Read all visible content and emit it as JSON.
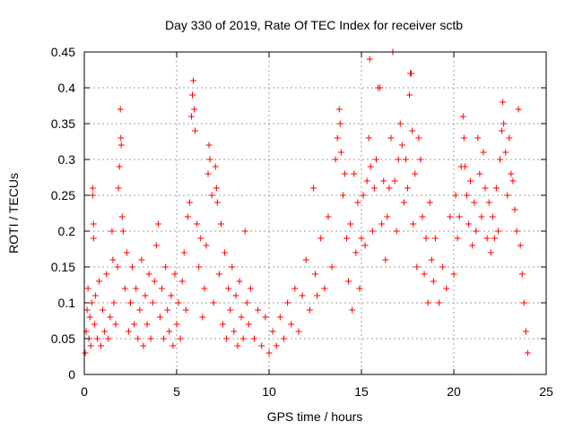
{
  "chart_data": {
    "type": "scatter",
    "title": "Day 330 of 2019, Rate Of TEC Index for receiver sctb",
    "xlabel": "GPS time / hours",
    "ylabel": "ROTI / TECUs",
    "xlim": [
      0,
      25
    ],
    "ylim": [
      0,
      0.45
    ],
    "xticks": [
      0,
      5,
      10,
      15,
      20,
      25
    ],
    "yticks": [
      0,
      0.05,
      0.1,
      0.15,
      0.2,
      0.25,
      0.3,
      0.35,
      0.4,
      0.45
    ],
    "xtick_labels": [
      "0",
      "5",
      "10",
      "15",
      "20",
      "25"
    ],
    "ytick_labels": [
      "0",
      "0.05",
      "0.1",
      "0.15",
      "0.2",
      "0.25",
      "0.3",
      "0.35",
      "0.4",
      "0.45"
    ],
    "grid": true,
    "marker": "plus",
    "color": "#ff0000",
    "series": [
      {
        "points": [
          [
            0.05,
            0.03
          ],
          [
            0.1,
            0.06
          ],
          [
            0.15,
            0.09
          ],
          [
            0.2,
            0.12
          ],
          [
            0.25,
            0.05
          ],
          [
            0.3,
            0.08
          ],
          [
            0.35,
            0.04
          ],
          [
            0.4,
            0.1
          ],
          [
            0.45,
            0.25
          ],
          [
            0.45,
            0.26
          ],
          [
            0.5,
            0.21
          ],
          [
            0.5,
            0.19
          ],
          [
            0.55,
            0.07
          ],
          [
            0.6,
            0.11
          ],
          [
            0.7,
            0.05
          ],
          [
            0.8,
            0.13
          ],
          [
            0.9,
            0.04
          ],
          [
            1.0,
            0.09
          ],
          [
            1.1,
            0.06
          ],
          [
            1.2,
            0.14
          ],
          [
            1.3,
            0.05
          ],
          [
            1.4,
            0.08
          ],
          [
            1.5,
            0.2
          ],
          [
            1.55,
            0.16
          ],
          [
            1.6,
            0.1
          ],
          [
            1.7,
            0.07
          ],
          [
            1.8,
            0.15
          ],
          [
            1.85,
            0.26
          ],
          [
            1.9,
            0.29
          ],
          [
            1.95,
            0.37
          ],
          [
            1.98,
            0.33
          ],
          [
            2.0,
            0.32
          ],
          [
            2.05,
            0.22
          ],
          [
            2.1,
            0.2
          ],
          [
            2.2,
            0.12
          ],
          [
            2.3,
            0.17
          ],
          [
            2.4,
            0.06
          ],
          [
            2.5,
            0.1
          ],
          [
            2.6,
            0.15
          ],
          [
            2.7,
            0.07
          ],
          [
            2.8,
            0.12
          ],
          [
            2.9,
            0.05
          ],
          [
            3.0,
            0.09
          ],
          [
            3.1,
            0.16
          ],
          [
            3.2,
            0.04
          ],
          [
            3.3,
            0.11
          ],
          [
            3.4,
            0.07
          ],
          [
            3.5,
            0.14
          ],
          [
            3.6,
            0.05
          ],
          [
            3.7,
            0.1
          ],
          [
            3.8,
            0.13
          ],
          [
            3.9,
            0.18
          ],
          [
            4.0,
            0.21
          ],
          [
            4.1,
            0.08
          ],
          [
            4.2,
            0.12
          ],
          [
            4.3,
            0.05
          ],
          [
            4.4,
            0.15
          ],
          [
            4.5,
            0.09
          ],
          [
            4.6,
            0.06
          ],
          [
            4.7,
            0.11
          ],
          [
            4.8,
            0.04
          ],
          [
            4.9,
            0.14
          ],
          [
            5.0,
            0.07
          ],
          [
            5.1,
            0.1
          ],
          [
            5.2,
            0.05
          ],
          [
            5.3,
            0.13
          ],
          [
            5.4,
            0.17
          ],
          [
            5.5,
            0.09
          ],
          [
            5.6,
            0.22
          ],
          [
            5.7,
            0.24
          ],
          [
            5.8,
            0.36
          ],
          [
            5.85,
            0.39
          ],
          [
            5.9,
            0.41
          ],
          [
            5.95,
            0.37
          ],
          [
            6.0,
            0.34
          ],
          [
            6.1,
            0.21
          ],
          [
            6.2,
            0.15
          ],
          [
            6.3,
            0.19
          ],
          [
            6.4,
            0.08
          ],
          [
            6.5,
            0.12
          ],
          [
            6.6,
            0.18
          ],
          [
            6.7,
            0.28
          ],
          [
            6.75,
            0.32
          ],
          [
            6.8,
            0.3
          ],
          [
            6.9,
            0.25
          ],
          [
            7.0,
            0.1
          ],
          [
            7.1,
            0.29
          ],
          [
            7.15,
            0.26
          ],
          [
            7.2,
            0.24
          ],
          [
            7.3,
            0.14
          ],
          [
            7.4,
            0.21
          ],
          [
            7.5,
            0.07
          ],
          [
            7.6,
            0.17
          ],
          [
            7.7,
            0.05
          ],
          [
            7.8,
            0.12
          ],
          [
            7.9,
            0.09
          ],
          [
            8.0,
            0.15
          ],
          [
            8.1,
            0.06
          ],
          [
            8.2,
            0.11
          ],
          [
            8.3,
            0.04
          ],
          [
            8.4,
            0.13
          ],
          [
            8.5,
            0.08
          ],
          [
            8.6,
            0.05
          ],
          [
            8.7,
            0.2
          ],
          [
            8.8,
            0.1
          ],
          [
            8.9,
            0.07
          ],
          [
            9.0,
            0.12
          ],
          [
            9.2,
            0.05
          ],
          [
            9.4,
            0.09
          ],
          [
            9.6,
            0.04
          ],
          [
            9.8,
            0.08
          ],
          [
            10.0,
            0.03
          ],
          [
            10.2,
            0.06
          ],
          [
            10.4,
            0.04
          ],
          [
            10.6,
            0.08
          ],
          [
            10.8,
            0.05
          ],
          [
            11.0,
            0.1
          ],
          [
            11.2,
            0.07
          ],
          [
            11.4,
            0.12
          ],
          [
            11.6,
            0.06
          ],
          [
            11.8,
            0.11
          ],
          [
            12.0,
            0.16
          ],
          [
            12.2,
            0.09
          ],
          [
            12.4,
            0.26
          ],
          [
            12.5,
            0.14
          ],
          [
            12.6,
            0.11
          ],
          [
            12.8,
            0.19
          ],
          [
            13.0,
            0.12
          ],
          [
            13.2,
            0.22
          ],
          [
            13.4,
            0.15
          ],
          [
            13.6,
            0.3
          ],
          [
            13.7,
            0.33
          ],
          [
            13.8,
            0.37
          ],
          [
            13.85,
            0.35
          ],
          [
            13.9,
            0.31
          ],
          [
            14.0,
            0.25
          ],
          [
            14.1,
            0.28
          ],
          [
            14.2,
            0.19
          ],
          [
            14.3,
            0.13
          ],
          [
            14.4,
            0.21
          ],
          [
            14.5,
            0.09
          ],
          [
            14.6,
            0.28
          ],
          [
            14.7,
            0.17
          ],
          [
            14.8,
            0.24
          ],
          [
            14.9,
            0.12
          ],
          [
            15.0,
            0.19
          ],
          [
            15.1,
            0.25
          ],
          [
            15.2,
            0.18
          ],
          [
            15.3,
            0.27
          ],
          [
            15.4,
            0.33
          ],
          [
            15.45,
            0.44
          ],
          [
            15.5,
            0.29
          ],
          [
            15.6,
            0.2
          ],
          [
            15.7,
            0.26
          ],
          [
            15.8,
            0.3
          ],
          [
            15.9,
            0.4
          ],
          [
            16.0,
            0.4
          ],
          [
            16.1,
            0.21
          ],
          [
            16.2,
            0.27
          ],
          [
            16.3,
            0.16
          ],
          [
            16.4,
            0.22
          ],
          [
            16.5,
            0.26
          ],
          [
            16.6,
            0.33
          ],
          [
            16.7,
            0.45
          ],
          [
            16.8,
            0.27
          ],
          [
            16.9,
            0.2
          ],
          [
            17.0,
            0.3
          ],
          [
            17.1,
            0.35
          ],
          [
            17.2,
            0.32
          ],
          [
            17.3,
            0.24
          ],
          [
            17.4,
            0.3
          ],
          [
            17.5,
            0.26
          ],
          [
            17.6,
            0.39
          ],
          [
            17.65,
            0.42
          ],
          [
            17.7,
            0.42
          ],
          [
            17.75,
            0.34
          ],
          [
            17.8,
            0.21
          ],
          [
            17.9,
            0.28
          ],
          [
            18.0,
            0.15
          ],
          [
            18.1,
            0.33
          ],
          [
            18.2,
            0.3
          ],
          [
            18.3,
            0.22
          ],
          [
            18.4,
            0.14
          ],
          [
            18.5,
            0.19
          ],
          [
            18.6,
            0.1
          ],
          [
            18.7,
            0.24
          ],
          [
            18.8,
            0.16
          ],
          [
            18.9,
            0.13
          ],
          [
            19.0,
            0.19
          ],
          [
            19.2,
            0.1
          ],
          [
            19.4,
            0.15
          ],
          [
            19.6,
            0.12
          ],
          [
            19.8,
            0.22
          ],
          [
            20.0,
            0.14
          ],
          [
            20.1,
            0.25
          ],
          [
            20.2,
            0.19
          ],
          [
            20.3,
            0.22
          ],
          [
            20.4,
            0.29
          ],
          [
            20.5,
            0.36
          ],
          [
            20.55,
            0.33
          ],
          [
            20.6,
            0.29
          ],
          [
            20.7,
            0.25
          ],
          [
            20.8,
            0.21
          ],
          [
            20.9,
            0.27
          ],
          [
            21.0,
            0.18
          ],
          [
            21.1,
            0.24
          ],
          [
            21.2,
            0.2
          ],
          [
            21.3,
            0.33
          ],
          [
            21.4,
            0.28
          ],
          [
            21.5,
            0.22
          ],
          [
            21.6,
            0.31
          ],
          [
            21.7,
            0.26
          ],
          [
            21.8,
            0.19
          ],
          [
            21.9,
            0.24
          ],
          [
            22.0,
            0.17
          ],
          [
            22.1,
            0.22
          ],
          [
            22.2,
            0.19
          ],
          [
            22.3,
            0.26
          ],
          [
            22.4,
            0.2
          ],
          [
            22.5,
            0.3
          ],
          [
            22.6,
            0.34
          ],
          [
            22.65,
            0.38
          ],
          [
            22.7,
            0.35
          ],
          [
            22.8,
            0.31
          ],
          [
            22.9,
            0.25
          ],
          [
            23.0,
            0.33
          ],
          [
            23.1,
            0.28
          ],
          [
            23.2,
            0.27
          ],
          [
            23.3,
            0.23
          ],
          [
            23.4,
            0.2
          ],
          [
            23.5,
            0.37
          ],
          [
            23.6,
            0.18
          ],
          [
            23.7,
            0.14
          ],
          [
            23.8,
            0.1
          ],
          [
            23.9,
            0.06
          ],
          [
            24.0,
            0.03
          ]
        ]
      }
    ]
  }
}
